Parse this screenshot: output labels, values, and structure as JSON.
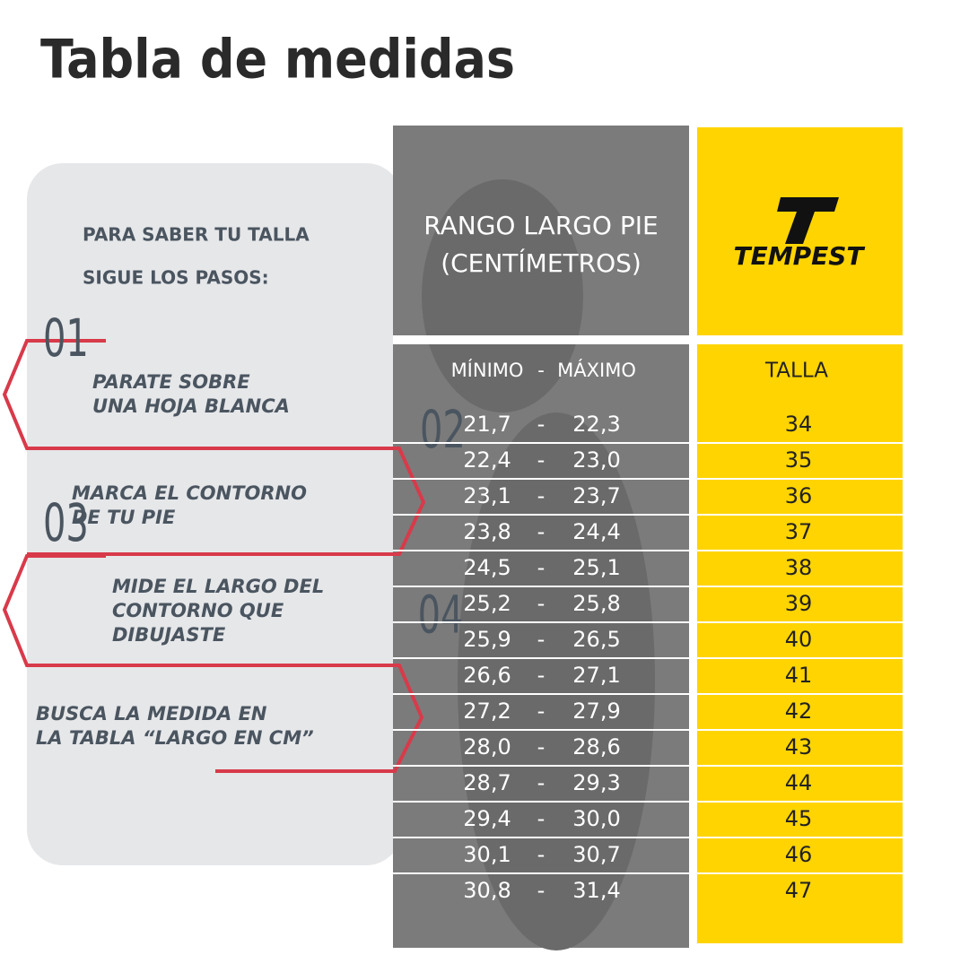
{
  "title": "Tabla de medidas",
  "instructions": {
    "lines": [
      "PARA SABER TU TALLA",
      "SIGUE LOS PASOS:"
    ]
  },
  "steps": [
    {
      "number": "01",
      "lines": [
        "PARATE SOBRE",
        "UNA HOJA BLANCA"
      ]
    },
    {
      "number": "02",
      "lines": [
        "MARCA EL CONTORNO",
        "DE TU PIE"
      ]
    },
    {
      "number": "03",
      "lines": [
        "MIDE EL LARGO DEL",
        "CONTORNO QUE",
        "DIBUJASTE"
      ]
    },
    {
      "number": "04",
      "lines": [
        "BUSCA LA MEDIDA EN",
        "LA TABLA “LARGO EN CM”"
      ]
    }
  ],
  "table": {
    "header_lines": [
      "RANGO LARGO PIE",
      "(CENTÍMETROS)"
    ],
    "brand": "TEMPEST",
    "subheader": [
      "MÍNIMO",
      "-",
      "MÁXIMO"
    ],
    "size_header": "TALLA",
    "rows": [
      [
        "21,7",
        "-",
        "22,3",
        "34"
      ],
      [
        "22,4",
        "-",
        "23,0",
        "35"
      ],
      [
        "23,1",
        "-",
        "23,7",
        "36"
      ],
      [
        "23,8",
        "-",
        "24,4",
        "37"
      ],
      [
        "24,5",
        "-",
        "25,1",
        "38"
      ],
      [
        "25,2",
        "-",
        "25,8",
        "39"
      ],
      [
        "25,9",
        "-",
        "26,5",
        "40"
      ],
      [
        "26,6",
        "-",
        "27,1",
        "41"
      ],
      [
        "27,2",
        "-",
        "27,9",
        "42"
      ],
      [
        "28,0",
        "-",
        "28,6",
        "43"
      ],
      [
        "28,7",
        "-",
        "29,3",
        "44"
      ],
      [
        "29,4",
        "-",
        "30,0",
        "45"
      ],
      [
        "30,1",
        "-",
        "30,7",
        "46"
      ],
      [
        "30,8",
        "-",
        "31,4",
        "47"
      ]
    ]
  }
}
